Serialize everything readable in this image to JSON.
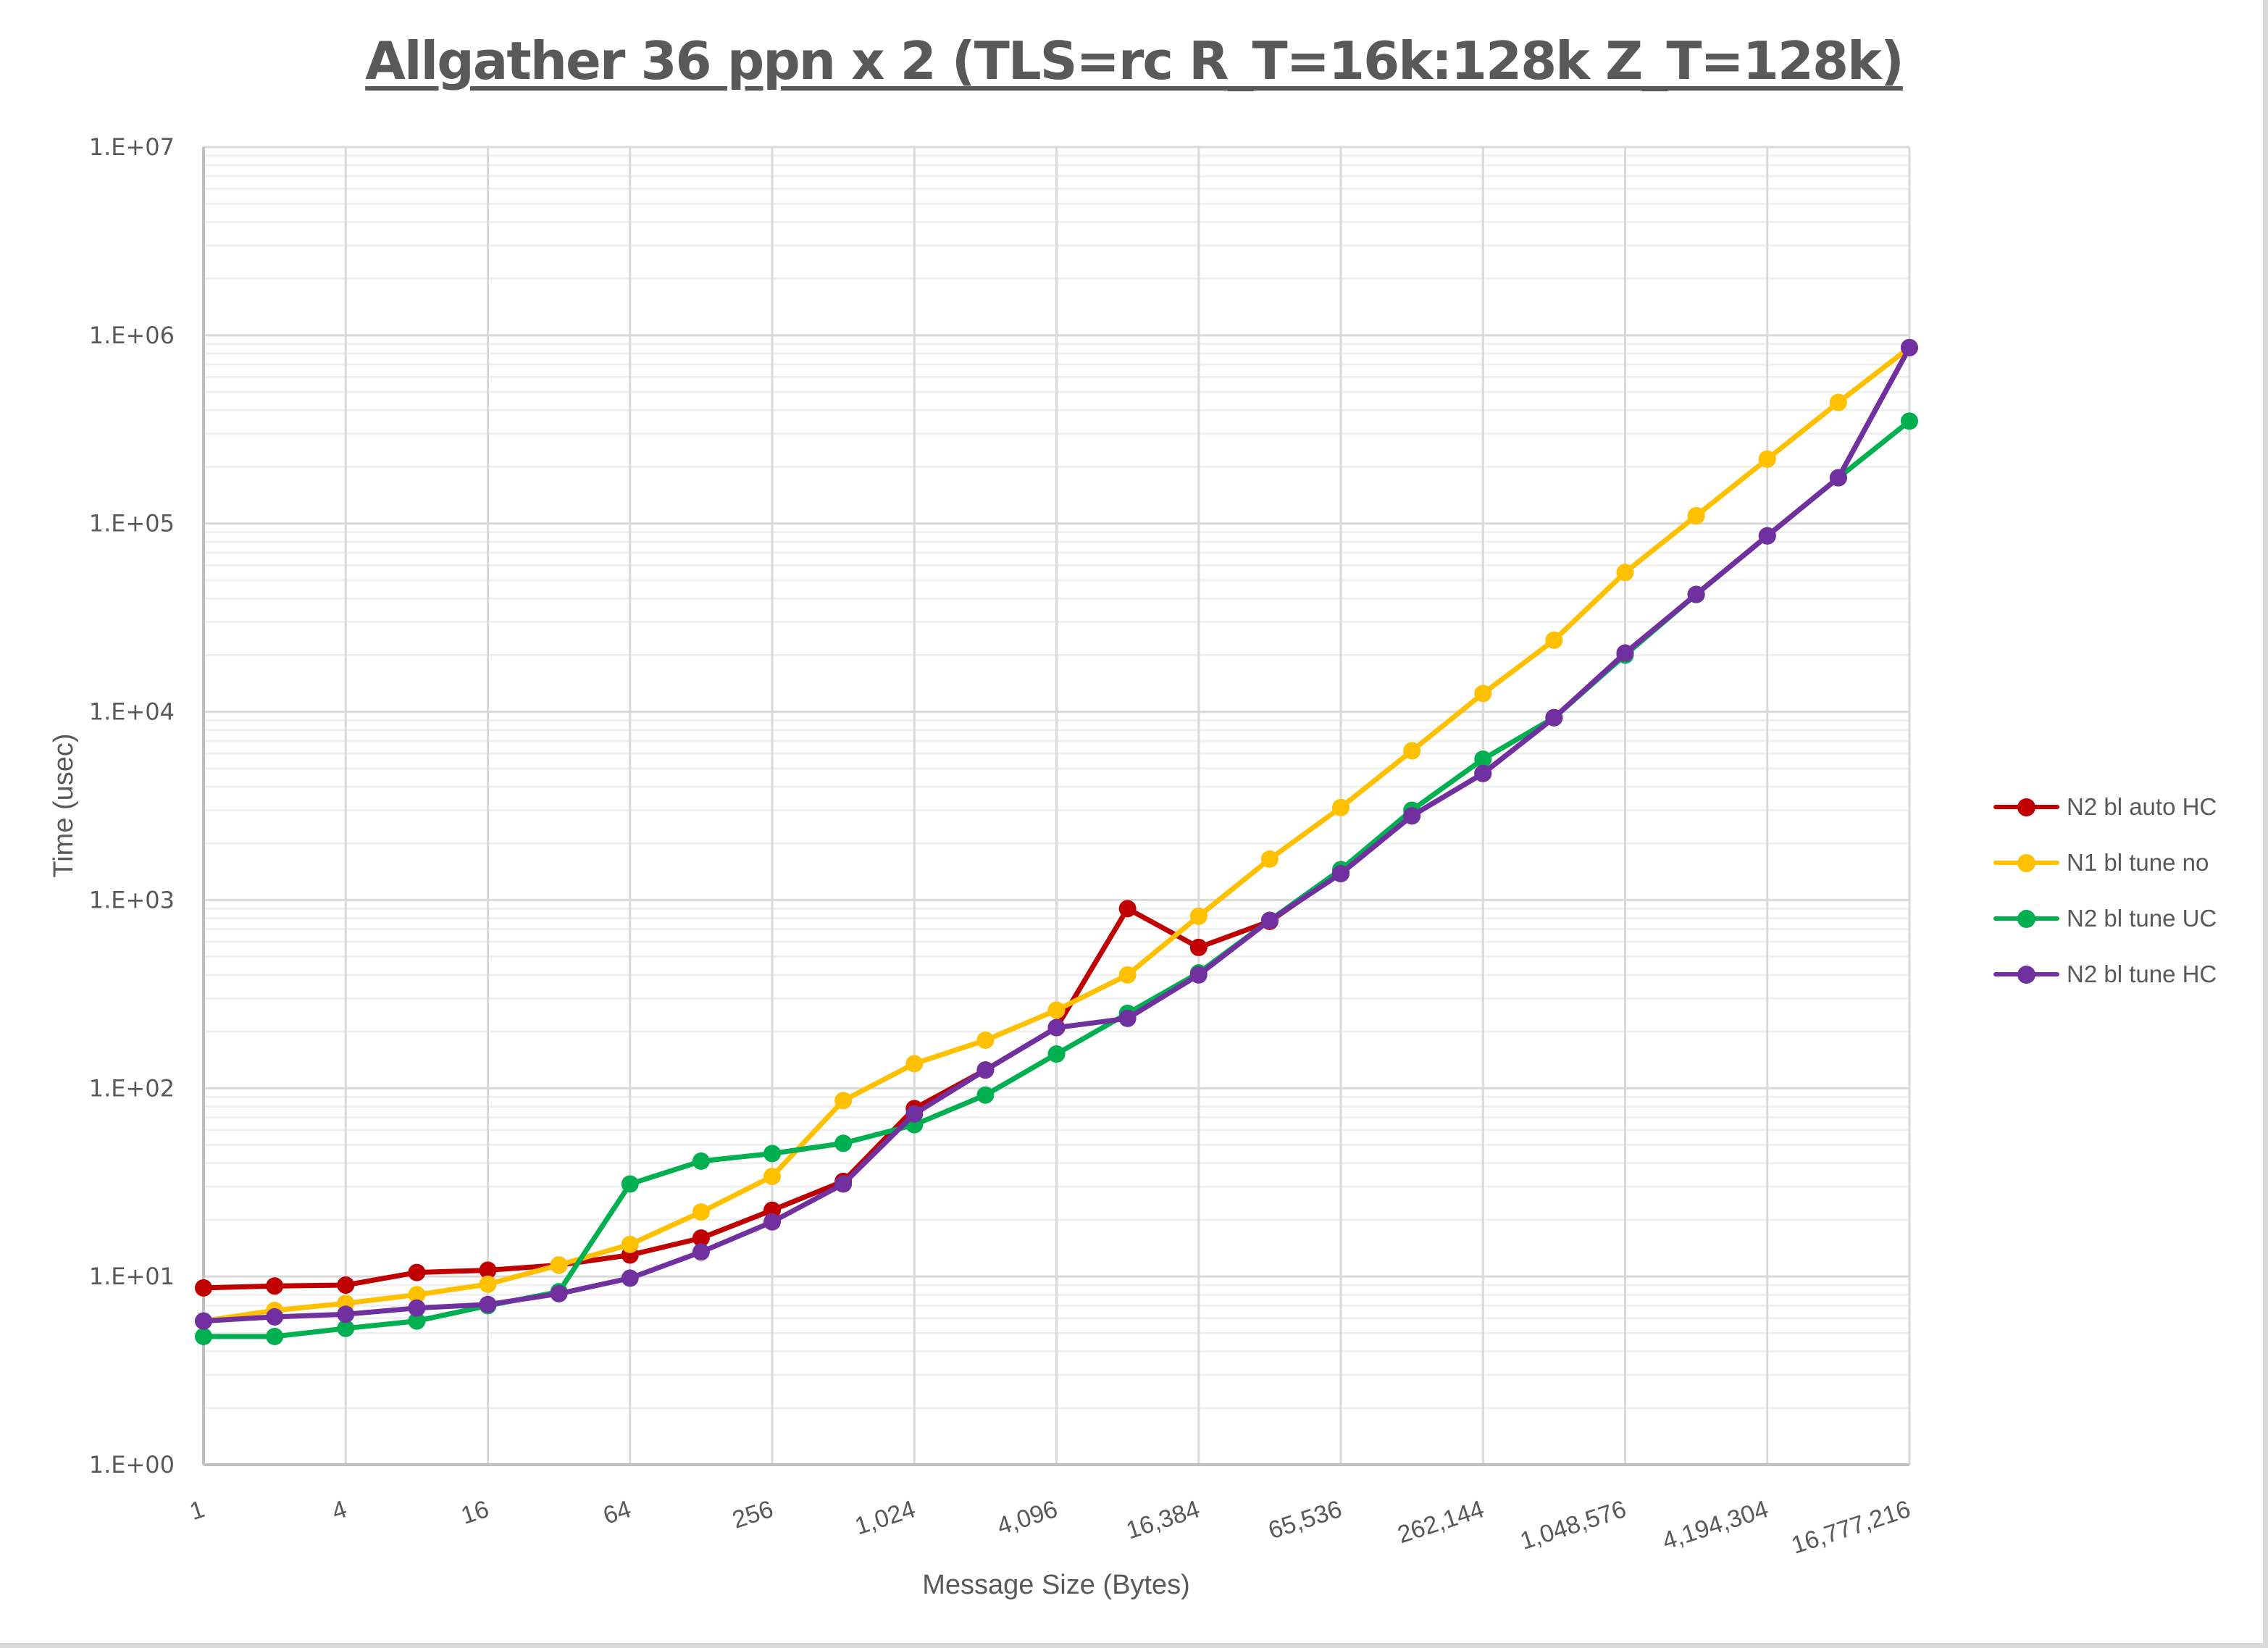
{
  "chart_data": {
    "type": "line",
    "title": "Allgather 36 ppn x 2 (TLS=rc R_T=16k:128k Z_T=128k)",
    "xlabel": "Message Size (Bytes)",
    "ylabel": "Time (usec)",
    "x_scale": "log2",
    "y_scale": "log10",
    "ylim": [
      1,
      10000000
    ],
    "grid": true,
    "legend_position": "right",
    "y_tick_labels": [
      "1.E+00",
      "1.E+01",
      "1.E+02",
      "1.E+03",
      "1.E+04",
      "1.E+05",
      "1.E+06",
      "1.E+07"
    ],
    "x_tick_labels": [
      "1",
      "4",
      "16",
      "64",
      "256",
      "1,024",
      "4,096",
      "16,384",
      "65,536",
      "262,144",
      "1,048,576",
      "4,194,304",
      "16,777,216"
    ],
    "x": [
      1,
      2,
      4,
      8,
      16,
      32,
      64,
      128,
      256,
      512,
      1024,
      2048,
      4096,
      8192,
      16384,
      32768,
      65536,
      131072,
      262144,
      524288,
      1048576,
      2097152,
      4194304,
      8388608,
      16777216
    ],
    "series": [
      {
        "name": "N2 bl auto HC",
        "color": "#C00000",
        "values": [
          8.7,
          8.9,
          9.0,
          10.5,
          10.8,
          11.5,
          13,
          16,
          22.5,
          32,
          78,
          125,
          210,
          900,
          560,
          770,
          1400,
          2800,
          4700,
          9300,
          20500,
          42000,
          86000,
          175000,
          860000
        ]
      },
      {
        "name": "N1 bl tune no",
        "color": "#FFC000",
        "values": [
          5.8,
          6.6,
          7.2,
          8.0,
          9.1,
          11.5,
          14.8,
          22,
          34,
          86,
          135,
          180,
          260,
          400,
          820,
          1650,
          3100,
          6200,
          12500,
          24000,
          55000,
          110000,
          220000,
          440000,
          860000
        ]
      },
      {
        "name": "N2 bl tune UC",
        "color": "#00B050",
        "values": [
          4.8,
          4.8,
          5.3,
          5.8,
          7.0,
          8.3,
          31,
          41,
          45,
          51,
          64,
          92,
          152,
          250,
          410,
          780,
          1450,
          3000,
          5600,
          9300,
          20000,
          42000,
          86000,
          175000,
          350000
        ]
      },
      {
        "name": "N2 bl tune HC",
        "color": "#7030A0",
        "values": [
          5.8,
          6.1,
          6.3,
          6.8,
          7.1,
          8.1,
          9.8,
          13.5,
          19.5,
          31,
          73,
          125,
          210,
          235,
          400,
          780,
          1380,
          2800,
          4700,
          9300,
          20500,
          42000,
          86000,
          175000,
          860000
        ]
      }
    ]
  },
  "legend": {
    "items": [
      {
        "label": "N2 bl auto HC",
        "color": "#C00000"
      },
      {
        "label": "N1 bl tune no",
        "color": "#FFC000"
      },
      {
        "label": "N2 bl tune UC",
        "color": "#00B050"
      },
      {
        "label": "N2 bl tune HC",
        "color": "#7030A0"
      }
    ]
  }
}
